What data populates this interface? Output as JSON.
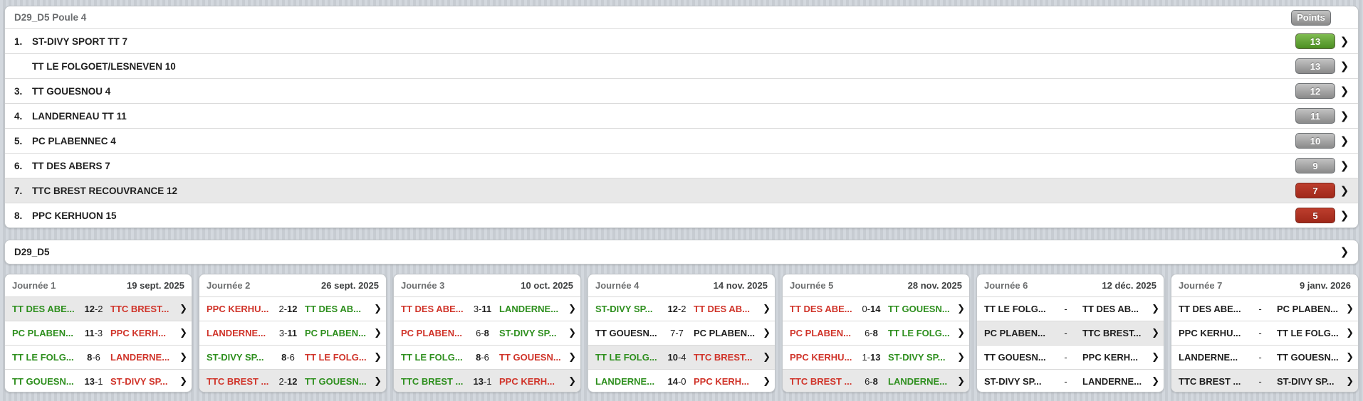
{
  "icons": {
    "chevron_right": "❯"
  },
  "colors": {
    "accent_green": "#4c8f22",
    "accent_red": "#a0281a",
    "badge_gray": "#8a8a8a",
    "text_green": "#2e8f1e",
    "text_red": "#d0342a",
    "row_highlight": "#e8e8e8"
  },
  "standings": {
    "title": "D29_D5 Poule 4",
    "points_header": "Points",
    "rows": [
      {
        "rank": "1.",
        "team": "ST-DIVY SPORT TT 7",
        "points": "13",
        "badge": "green",
        "highlighted": false
      },
      {
        "rank": "",
        "team": "TT LE FOLGOET/LESNEVEN 10",
        "points": "13",
        "badge": "gray",
        "highlighted": false
      },
      {
        "rank": "3.",
        "team": "TT GOUESNOU 4",
        "points": "12",
        "badge": "gray",
        "highlighted": false
      },
      {
        "rank": "4.",
        "team": "LANDERNEAU TT 11",
        "points": "11",
        "badge": "gray",
        "highlighted": false
      },
      {
        "rank": "5.",
        "team": "PC PLABENNEC 4",
        "points": "10",
        "badge": "gray",
        "highlighted": false
      },
      {
        "rank": "6.",
        "team": "TT DES ABERS 7",
        "points": "9",
        "badge": "gray",
        "highlighted": false
      },
      {
        "rank": "7.",
        "team": "TTC BREST RECOUVRANCE 12",
        "points": "7",
        "badge": "red",
        "highlighted": true
      },
      {
        "rank": "8.",
        "team": "PPC KERHUON 15",
        "points": "5",
        "badge": "red",
        "highlighted": false
      }
    ]
  },
  "division": {
    "title": "D29_D5"
  },
  "rounds": [
    {
      "label": "Journée 1",
      "date": "19 sept. 2025",
      "matches": [
        {
          "home": "TT DES ABE...",
          "home_color": "green",
          "home_score": "12",
          "sep": "-",
          "away_score": "2",
          "away": "TTC BREST...",
          "away_color": "red",
          "winner": "home",
          "highlighted": true
        },
        {
          "home": "PC PLABEN...",
          "home_color": "green",
          "home_score": "11",
          "sep": "-",
          "away_score": "3",
          "away": "PPC KERH...",
          "away_color": "red",
          "winner": "home",
          "highlighted": false
        },
        {
          "home": "TT LE FOLG...",
          "home_color": "green",
          "home_score": "8",
          "sep": "-",
          "away_score": "6",
          "away": "LANDERNE...",
          "away_color": "red",
          "winner": "home",
          "highlighted": false
        },
        {
          "home": "TT GOUESN...",
          "home_color": "green",
          "home_score": "13",
          "sep": "-",
          "away_score": "1",
          "away": "ST-DIVY SP...",
          "away_color": "red",
          "winner": "home",
          "highlighted": false
        }
      ]
    },
    {
      "label": "Journée 2",
      "date": "26 sept. 2025",
      "matches": [
        {
          "home": "PPC KERHU...",
          "home_color": "red",
          "home_score": "2",
          "sep": "-",
          "away_score": "12",
          "away": "TT DES AB...",
          "away_color": "green",
          "winner": "away",
          "highlighted": false
        },
        {
          "home": "LANDERNE...",
          "home_color": "red",
          "home_score": "3",
          "sep": "-",
          "away_score": "11",
          "away": "PC PLABEN...",
          "away_color": "green",
          "winner": "away",
          "highlighted": false
        },
        {
          "home": "ST-DIVY SP...",
          "home_color": "green",
          "home_score": "8",
          "sep": "-",
          "away_score": "6",
          "away": "TT LE FOLG...",
          "away_color": "red",
          "winner": "home",
          "highlighted": false
        },
        {
          "home": "TTC BREST ...",
          "home_color": "red",
          "home_score": "2",
          "sep": "-",
          "away_score": "12",
          "away": "TT GOUESN...",
          "away_color": "green",
          "winner": "away",
          "highlighted": true
        }
      ]
    },
    {
      "label": "Journée 3",
      "date": "10 oct. 2025",
      "matches": [
        {
          "home": "TT DES ABE...",
          "home_color": "red",
          "home_score": "3",
          "sep": "-",
          "away_score": "11",
          "away": "LANDERNE...",
          "away_color": "green",
          "winner": "away",
          "highlighted": false
        },
        {
          "home": "PC PLABEN...",
          "home_color": "red",
          "home_score": "6",
          "sep": "-",
          "away_score": "8",
          "away": "ST-DIVY SP...",
          "away_color": "green",
          "winner": "away",
          "highlighted": false
        },
        {
          "home": "TT LE FOLG...",
          "home_color": "green",
          "home_score": "8",
          "sep": "-",
          "away_score": "6",
          "away": "TT GOUESN...",
          "away_color": "red",
          "winner": "home",
          "highlighted": false
        },
        {
          "home": "TTC BREST ...",
          "home_color": "green",
          "home_score": "13",
          "sep": "-",
          "away_score": "1",
          "away": "PPC KERH...",
          "away_color": "red",
          "winner": "home",
          "highlighted": true
        }
      ]
    },
    {
      "label": "Journée 4",
      "date": "14 nov. 2025",
      "matches": [
        {
          "home": "ST-DIVY SP...",
          "home_color": "green",
          "home_score": "12",
          "sep": "-",
          "away_score": "2",
          "away": "TT DES AB...",
          "away_color": "red",
          "winner": "home",
          "highlighted": false
        },
        {
          "home": "TT GOUESN...",
          "home_color": "black",
          "home_score": "7",
          "sep": "-",
          "away_score": "7",
          "away": "PC PLABEN...",
          "away_color": "black",
          "winner": "none",
          "highlighted": false
        },
        {
          "home": "TT LE FOLG...",
          "home_color": "green",
          "home_score": "10",
          "sep": "-",
          "away_score": "4",
          "away": "TTC BREST...",
          "away_color": "red",
          "winner": "home",
          "highlighted": true
        },
        {
          "home": "LANDERNE...",
          "home_color": "green",
          "home_score": "14",
          "sep": "-",
          "away_score": "0",
          "away": "PPC KERH...",
          "away_color": "red",
          "winner": "home",
          "highlighted": false
        }
      ]
    },
    {
      "label": "Journée 5",
      "date": "28 nov. 2025",
      "matches": [
        {
          "home": "TT DES ABE...",
          "home_color": "red",
          "home_score": "0",
          "sep": "-",
          "away_score": "14",
          "away": "TT GOUESN...",
          "away_color": "green",
          "winner": "away",
          "highlighted": false
        },
        {
          "home": "PC PLABEN...",
          "home_color": "red",
          "home_score": "6",
          "sep": "-",
          "away_score": "8",
          "away": "TT LE FOLG...",
          "away_color": "green",
          "winner": "away",
          "highlighted": false
        },
        {
          "home": "PPC KERHU...",
          "home_color": "red",
          "home_score": "1",
          "sep": "-",
          "away_score": "13",
          "away": "ST-DIVY SP...",
          "away_color": "green",
          "winner": "away",
          "highlighted": false
        },
        {
          "home": "TTC BREST ...",
          "home_color": "red",
          "home_score": "6",
          "sep": "-",
          "away_score": "8",
          "away": "LANDERNE...",
          "away_color": "green",
          "winner": "away",
          "highlighted": true
        }
      ]
    },
    {
      "label": "Journée 6",
      "date": "12 déc. 2025",
      "matches": [
        {
          "home": "TT LE FOLG...",
          "home_color": "black",
          "home_score": "",
          "sep": "-",
          "away_score": "",
          "away": "TT DES AB...",
          "away_color": "black",
          "winner": "none",
          "highlighted": false
        },
        {
          "home": "PC PLABEN...",
          "home_color": "black",
          "home_score": "",
          "sep": "-",
          "away_score": "",
          "away": "TTC BREST...",
          "away_color": "black",
          "winner": "none",
          "highlighted": true
        },
        {
          "home": "TT GOUESN...",
          "home_color": "black",
          "home_score": "",
          "sep": "-",
          "away_score": "",
          "away": "PPC KERH...",
          "away_color": "black",
          "winner": "none",
          "highlighted": false
        },
        {
          "home": "ST-DIVY SP...",
          "home_color": "black",
          "home_score": "",
          "sep": "-",
          "away_score": "",
          "away": "LANDERNE...",
          "away_color": "black",
          "winner": "none",
          "highlighted": false
        }
      ]
    },
    {
      "label": "Journée 7",
      "date": "9 janv. 2026",
      "matches": [
        {
          "home": "TT DES ABE...",
          "home_color": "black",
          "home_score": "",
          "sep": "-",
          "away_score": "",
          "away": "PC PLABEN...",
          "away_color": "black",
          "winner": "none",
          "highlighted": false
        },
        {
          "home": "PPC KERHU...",
          "home_color": "black",
          "home_score": "",
          "sep": "-",
          "away_score": "",
          "away": "TT LE FOLG...",
          "away_color": "black",
          "winner": "none",
          "highlighted": false
        },
        {
          "home": "LANDERNE...",
          "home_color": "black",
          "home_score": "",
          "sep": "-",
          "away_score": "",
          "away": "TT GOUESN...",
          "away_color": "black",
          "winner": "none",
          "highlighted": false
        },
        {
          "home": "TTC BREST ...",
          "home_color": "black",
          "home_score": "",
          "sep": "-",
          "away_score": "",
          "away": "ST-DIVY SP...",
          "away_color": "black",
          "winner": "none",
          "highlighted": true
        }
      ]
    }
  ]
}
